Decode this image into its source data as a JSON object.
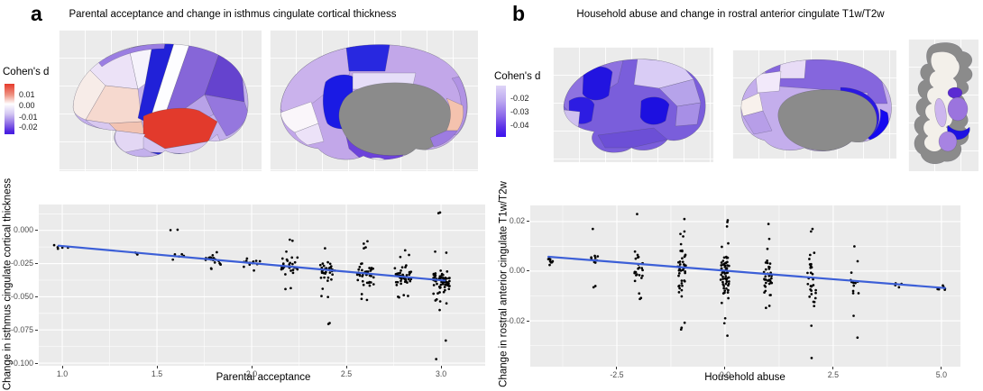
{
  "figure": {
    "background": "#ffffff",
    "panel_bg": "#ebebeb",
    "grid_color": "#ffffff",
    "tick_color": "#4d4d4d",
    "panels": [
      {
        "label": "a",
        "title": "Parental acceptance and change in isthmus cingulate cortical thickness",
        "legend": {
          "title": "Cohen's d",
          "ticks": [
            "0.01",
            "0.00",
            "-0.01",
            "-0.02"
          ],
          "gradient": [
            "#e63a2b 0%",
            "#ee9383 22%",
            "#ffffff 40%",
            "#d3c6f2 60%",
            "#9272e6 78%",
            "#4e22e0 95%",
            "#4520e2 100%"
          ]
        }
      },
      {
        "label": "b",
        "title": "Household abuse and change in rostral anterior cingulate T1w/T2w",
        "legend": {
          "title": "Cohen's d",
          "ticks": [
            "-0.02",
            "-0.03",
            "-0.04"
          ],
          "gradient": [
            "#ded4f7 0%",
            "#bca8f0 30%",
            "#8a66ea 60%",
            "#5a2fe8 82%",
            "#3a11ee 100%"
          ]
        }
      }
    ]
  },
  "brains": {
    "a_lateral": {
      "base": "#c3b0ec",
      "regions": {
        "superior_frontal": "#cdbbf0",
        "superior_frontal_rim": "#9b7ee2",
        "frontal_pole": "#f7ece8",
        "rostral_middle_frontal": "#ece2f7",
        "pars_triangularis": "#f6d9cf",
        "pars_opercularis": "#f2c3b2",
        "lateral_orbitofrontal": "#d8c8f0",
        "caudal_middle_frontal": "#f6f3fb",
        "precentral": "#2121d8",
        "postcentral": "#fdfdff",
        "superior_parietal": "#8666d8",
        "inferior_parietal": "#6543ce",
        "supramarginal": "#b8a2e8",
        "lateral_occipital": "#9577de",
        "superior_temporal": "#e23a2c",
        "middle_temporal": "#d4c5f0",
        "inferior_temporal": "#2525da",
        "temporal_pole": "#e3d7f4"
      }
    },
    "a_medial": {
      "base": "#c2a7e9",
      "regions": {
        "superior_frontal_medial": "#cab2ec",
        "paracentral": "#2828e0",
        "precuneus_band": "#e6def8",
        "posterior_cingulate": "#1a1ae4",
        "corpus_callosum": "#8b8b8b",
        "isthmus_region": "#f4c2ae",
        "lingual": "#9d7ce0",
        "cuneus_rim": "#b193e4",
        "medial_orbitofrontal": "#faf6fa",
        "rostral_anterior_cingulate": "#ece2f8",
        "fusiform_strip": "#6c42da",
        "occipital_pole": "#ffffff"
      }
    },
    "b_lateral": {
      "base": "#7a5edb",
      "regions": {
        "upper_band": "#8e72e0",
        "superior_parietal": "#d9ccf5",
        "inferior_parietal": "#b6a3ea",
        "inferior_parietal_low": "#a78fe6",
        "caudal_middle_frontal": "#2214e0",
        "pars_region": "#2d1ce2",
        "supramarginal": "#1d10e0",
        "occipital_pale": "#cfc0ef",
        "temporal_band": "#6c4fd6"
      }
    },
    "b_medial": {
      "base": "#c4aeec",
      "regions": {
        "top_strip": "#8566dd",
        "paracentral_pale": "#e8dcf6",
        "precuneus_pale": "#f2e9fa",
        "cuneus_white": "#f8f1ec",
        "lingual_purple": "#b79ee8",
        "corpus_callosum": "#8b8b8b",
        "rostral_anterior_cingulate": "#2a18e2",
        "acc_bright": "#1509f0",
        "bottom_rim": "#9478e0"
      }
    },
    "b_subcortical": {
      "silhouette": "#8b8b8b",
      "interior": "#f3f0ea",
      "regions": {
        "caudate": "#cdb6ee",
        "thalamus": "#9b74de",
        "pallidum": "#5b2ad2",
        "hippocampus": "#1d11e2",
        "amygdala": "#a783e2"
      }
    }
  },
  "chart_data": [
    {
      "type": "scatter",
      "title": "Parental acceptance and change in isthmus cingulate cortical thickness",
      "xlabel": "Parental acceptance",
      "ylabel": "Change in isthmus cingulate cortical thickness",
      "xlim": [
        0.876,
        3.233
      ],
      "ylim": [
        -0.102,
        0.0195
      ],
      "xticks": [
        1.0,
        1.5,
        2.0,
        2.5,
        3.0
      ],
      "xtick_labels": [
        "1.0",
        "1.5",
        "2.0",
        "2.5",
        "3.0"
      ],
      "yticks": [
        0.0,
        -0.025,
        -0.05,
        -0.075,
        -0.1
      ],
      "ytick_labels": [
        "0.000",
        "-0.025",
        "-0.050",
        "-0.075",
        "-0.100"
      ],
      "grid": true,
      "point_color": "#000000",
      "x_jitter": 0.045,
      "regression_line": {
        "x1": 0.98,
        "y1": -0.0115,
        "x2": 3.02,
        "y2": -0.0378,
        "color": "#3c5fd7"
      },
      "clusters": [
        {
          "x": 1.0,
          "n": 5,
          "y_mean": -0.012,
          "y_sd": 0.001,
          "y_outliers": []
        },
        {
          "x": 1.4,
          "n": 3,
          "y_mean": -0.0172,
          "y_sd": 0.0006,
          "y_outliers": []
        },
        {
          "x": 1.6,
          "n": 6,
          "y_mean": -0.0198,
          "y_sd": 0.001,
          "y_outliers": [
            0.0005,
            0.0002
          ]
        },
        {
          "x": 1.8,
          "n": 16,
          "y_mean": -0.0225,
          "y_sd": 0.0018,
          "y_outliers": [
            -0.029,
            -0.0286,
            -0.0165
          ]
        },
        {
          "x": 2.0,
          "n": 14,
          "y_mean": -0.0243,
          "y_sd": 0.0013,
          "y_outliers": [
            -0.0302
          ]
        },
        {
          "x": 2.2,
          "n": 26,
          "y_mean": -0.0272,
          "y_sd": 0.0028,
          "y_outliers": [
            -0.007,
            -0.0078,
            -0.016,
            -0.0435,
            -0.0442
          ]
        },
        {
          "x": 2.4,
          "n": 30,
          "y_mean": -0.031,
          "y_sd": 0.0032,
          "y_outliers": [
            -0.0135,
            -0.044,
            -0.0495,
            -0.0502,
            -0.0698,
            -0.0705
          ]
        },
        {
          "x": 2.6,
          "n": 38,
          "y_mean": -0.033,
          "y_sd": 0.0036,
          "y_outliers": [
            -0.0082,
            -0.01,
            -0.0128,
            -0.0135,
            -0.048,
            -0.0516,
            -0.0524
          ]
        },
        {
          "x": 2.8,
          "n": 42,
          "y_mean": -0.034,
          "y_sd": 0.0038,
          "y_outliers": [
            -0.015,
            -0.0185,
            -0.02,
            -0.0488,
            -0.0494,
            -0.05,
            -0.0505
          ]
        },
        {
          "x": 3.0,
          "n": 62,
          "y_mean": -0.0378,
          "y_sd": 0.0045,
          "y_outliers": [
            0.013,
            0.0135,
            -0.016,
            -0.0168,
            -0.052,
            -0.0528,
            -0.0535,
            -0.055,
            -0.06,
            -0.083,
            -0.097
          ]
        }
      ]
    },
    {
      "type": "scatter",
      "title": "Household abuse and change in rostral anterior cingulate T1w/T2w",
      "xlabel": "Household abuse",
      "ylabel": "Change in rostral anterior cingulate T1w/T2w",
      "xlim": [
        -4.5,
        5.44
      ],
      "ylim": [
        -0.0385,
        0.0265
      ],
      "xticks": [
        -2.5,
        0.0,
        2.5,
        5.0
      ],
      "xtick_labels": [
        "-2.5",
        "0.0",
        "2.5",
        "5.0"
      ],
      "yticks": [
        0.02,
        0.0,
        -0.02
      ],
      "ytick_labels": [
        "0.02",
        "0.00",
        "-0.02"
      ],
      "grid": true,
      "point_color": "#000000",
      "x_jitter": 0.1,
      "regression_line": {
        "x1": -4.08,
        "y1": 0.0058,
        "x2": 5.08,
        "y2": -0.0068,
        "color": "#3c5fd7"
      },
      "clusters": [
        {
          "x": -4,
          "n": 7,
          "y_mean": 0.005,
          "y_sd": 0.001,
          "y_outliers": [
            0.0025
          ]
        },
        {
          "x": -3,
          "n": 9,
          "y_mean": 0.0045,
          "y_sd": 0.0012,
          "y_outliers": [
            0.017,
            -0.006,
            -0.0065
          ]
        },
        {
          "x": -2,
          "n": 22,
          "y_mean": 0.0012,
          "y_sd": 0.003,
          "y_outliers": [
            0.023,
            -0.009,
            -0.0108,
            -0.0112
          ]
        },
        {
          "x": -1,
          "n": 40,
          "y_mean": 0.0002,
          "y_sd": 0.0048,
          "y_outliers": [
            0.021,
            0.016,
            0.015,
            0.014,
            -0.0208,
            -0.0228,
            -0.0235
          ]
        },
        {
          "x": 0,
          "n": 55,
          "y_mean": -0.0008,
          "y_sd": 0.005,
          "y_outliers": [
            0.0205,
            0.0198,
            0.018,
            -0.019,
            -0.021,
            -0.026
          ]
        },
        {
          "x": 1,
          "n": 32,
          "y_mean": -0.0028,
          "y_sd": 0.0042,
          "y_outliers": [
            0.019,
            0.013,
            0.009,
            -0.014,
            -0.0148
          ]
        },
        {
          "x": 2,
          "n": 28,
          "y_mean": -0.003,
          "y_sd": 0.0052,
          "y_outliers": [
            0.017,
            0.016,
            -0.022,
            -0.035
          ]
        },
        {
          "x": 3,
          "n": 12,
          "y_mean": -0.0048,
          "y_sd": 0.0022,
          "y_outliers": [
            0.01,
            0.004,
            -0.018,
            -0.0268
          ]
        },
        {
          "x": 4,
          "n": 4,
          "y_mean": -0.0053,
          "y_sd": 0.0007,
          "y_outliers": []
        },
        {
          "x": 5,
          "n": 6,
          "y_mean": -0.0068,
          "y_sd": 0.0007,
          "y_outliers": []
        }
      ]
    }
  ]
}
